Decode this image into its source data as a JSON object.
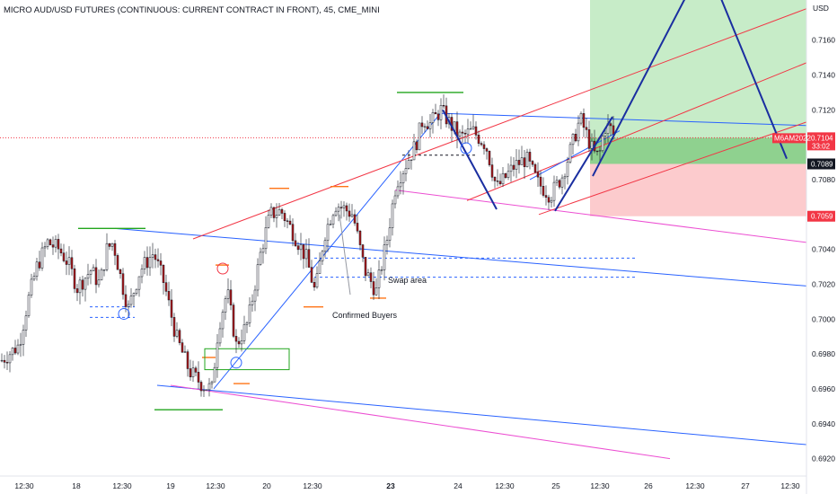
{
  "title": "MICRO AUD/USD FUTURES (CONTINUOUS: CURRENT CONTRACT IN FRONT), 45, CME_MINI",
  "chart_data": {
    "type": "candlestick",
    "currency": "USD",
    "ylim": [
      0.691,
      0.7183
    ],
    "y_ticks": [
      "0.7160",
      "0.7140",
      "0.7120",
      "0.7100",
      "0.7080",
      "0.7060",
      "0.7040",
      "0.7020",
      "0.7000",
      "0.6980",
      "0.6960",
      "0.6940",
      "0.6920"
    ],
    "x_ticks": [
      "12:30",
      "18",
      "12:30",
      "19",
      "12:30",
      "20",
      "12:30",
      "23",
      "24",
      "12:30",
      "25",
      "12:30",
      "26",
      "12:30",
      "27",
      "12:30"
    ],
    "bold_x_ticks": [
      "23"
    ],
    "up_color": "#ffffff",
    "down_color": "#b2191a",
    "candle_outline": "#131722",
    "price_path": [
      [
        0,
        0.6976
      ],
      [
        20,
        0.6985
      ],
      [
        30,
        0.701
      ],
      [
        40,
        0.703
      ],
      [
        52,
        0.7044
      ],
      [
        65,
        0.704
      ],
      [
        75,
        0.7032
      ],
      [
        85,
        0.7018
      ],
      [
        100,
        0.7028
      ],
      [
        110,
        0.702
      ],
      [
        118,
        0.704
      ],
      [
        125,
        0.7044
      ],
      [
        135,
        0.702
      ],
      [
        142,
        0.7006
      ],
      [
        155,
        0.7028
      ],
      [
        170,
        0.7038
      ],
      [
        182,
        0.702
      ],
      [
        195,
        0.699
      ],
      [
        210,
        0.697
      ],
      [
        225,
        0.6962
      ],
      [
        235,
        0.696
      ],
      [
        242,
        0.6995
      ],
      [
        252,
        0.7016
      ],
      [
        262,
        0.6985
      ],
      [
        275,
        0.6998
      ],
      [
        290,
        0.704
      ],
      [
        300,
        0.706
      ],
      [
        312,
        0.7062
      ],
      [
        325,
        0.705
      ],
      [
        340,
        0.7035
      ],
      [
        350,
        0.7015
      ],
      [
        360,
        0.7048
      ],
      [
        372,
        0.7066
      ],
      [
        380,
        0.7064
      ],
      [
        392,
        0.706
      ],
      [
        405,
        0.7028
      ],
      [
        418,
        0.7016
      ],
      [
        430,
        0.7046
      ],
      [
        440,
        0.7078
      ],
      [
        452,
        0.709
      ],
      [
        462,
        0.71
      ],
      [
        470,
        0.7115
      ],
      [
        478,
        0.7112
      ],
      [
        490,
        0.712
      ],
      [
        500,
        0.7112
      ],
      [
        512,
        0.7104
      ],
      [
        525,
        0.7108
      ],
      [
        540,
        0.71
      ],
      [
        552,
        0.7075
      ],
      [
        560,
        0.708
      ],
      [
        572,
        0.7088
      ],
      [
        585,
        0.7092
      ],
      [
        598,
        0.7078
      ],
      [
        612,
        0.7071
      ],
      [
        625,
        0.7082
      ],
      [
        635,
        0.7098
      ],
      [
        645,
        0.7115
      ],
      [
        652,
        0.7106
      ],
      [
        660,
        0.7095
      ],
      [
        666,
        0.7093
      ],
      [
        672,
        0.711
      ],
      [
        678,
        0.711
      ],
      [
        684,
        0.7104
      ]
    ],
    "last_price": "0.7104",
    "countdown": "33:02",
    "symbol_tag": "M6AM2022",
    "take_profit_level": "0.7089",
    "stop_level": "0.7059",
    "annotations": [
      "Confirmed Buyers",
      "Swap area"
    ]
  },
  "colors": {
    "blue_line": "#2962ff",
    "navy_line": "#1a2ea0",
    "red_line": "#f23645",
    "magenta_line": "#ec4fd2",
    "green_line": "#22a51d",
    "orange_line": "#ff7315",
    "profit_zone": "#c7ecc8",
    "profit_entry_zone": "#8fd18f",
    "loss_zone": "#fccbcd",
    "last_price_tag": "#f23645",
    "symbol_tag_bg": "#f23645",
    "level_tag_dark": "#131722",
    "level_tag_red": "#f23645"
  }
}
